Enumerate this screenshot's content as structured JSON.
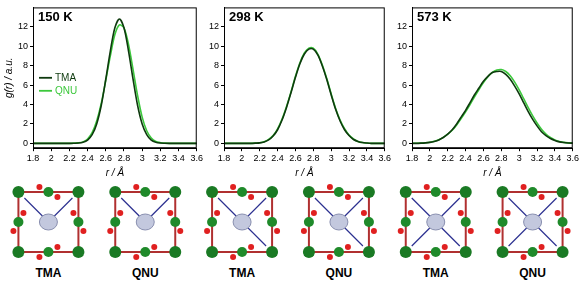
{
  "chart_data": [
    {
      "type": "line",
      "title": "150 K",
      "x_label": "r / Å",
      "y_label": "g(r) / a.u.",
      "x": [
        1.8,
        1.85,
        1.9,
        1.95,
        2.0,
        2.05,
        2.1,
        2.15,
        2.2,
        2.25,
        2.3,
        2.35,
        2.4,
        2.45,
        2.5,
        2.55,
        2.6,
        2.65,
        2.7,
        2.75,
        2.8,
        2.85,
        2.9,
        2.95,
        3.0,
        3.05,
        3.1,
        3.15,
        3.2,
        3.25,
        3.3,
        3.35,
        3.4,
        3.45,
        3.5,
        3.55,
        3.6
      ],
      "series": [
        {
          "name": "TMA",
          "color": "#0e3a0e",
          "values": [
            0,
            0,
            0,
            0,
            0,
            0,
            0,
            0,
            0,
            0.01,
            0.03,
            0.11,
            0.34,
            0.89,
            2.0,
            3.9,
            6.6,
            9.5,
            11.9,
            12.8,
            11.9,
            9.5,
            6.6,
            3.9,
            2.0,
            0.9,
            0.34,
            0.11,
            0.03,
            0.01,
            0,
            0,
            0,
            0,
            0,
            0,
            0
          ]
        },
        {
          "name": "QNU",
          "color": "#3cc83c",
          "values": [
            0,
            0,
            0,
            0,
            0,
            0,
            0,
            0,
            0,
            0.02,
            0.05,
            0.15,
            0.45,
            1.1,
            2.3,
            4.1,
            6.5,
            9.0,
            11.2,
            12.2,
            11.9,
            10.2,
            7.6,
            4.9,
            2.7,
            1.3,
            0.55,
            0.2,
            0.07,
            0.02,
            0,
            0,
            0,
            0,
            0,
            0,
            0
          ]
        }
      ],
      "xlim": [
        1.8,
        3.6
      ],
      "xticks": [
        1.8,
        2,
        2.2,
        2.4,
        2.6,
        2.8,
        3,
        3.2,
        3.4,
        3.6
      ],
      "ylim": [
        -0.5,
        14
      ],
      "yticks": [
        0,
        2,
        4,
        6,
        8,
        10,
        12
      ],
      "grid": false,
      "legend": "left"
    },
    {
      "type": "line",
      "title": "298 K",
      "x_label": "r / Å",
      "x": [
        1.8,
        1.85,
        1.9,
        1.95,
        2.0,
        2.05,
        2.1,
        2.15,
        2.2,
        2.25,
        2.3,
        2.35,
        2.4,
        2.45,
        2.5,
        2.55,
        2.6,
        2.65,
        2.7,
        2.75,
        2.8,
        2.85,
        2.9,
        2.95,
        3.0,
        3.05,
        3.1,
        3.15,
        3.2,
        3.25,
        3.3,
        3.35,
        3.4,
        3.45,
        3.5,
        3.55,
        3.6
      ],
      "series": [
        {
          "name": "TMA",
          "color": "#0e3a0e",
          "values": [
            0,
            0,
            0,
            0,
            0,
            0,
            0,
            0.02,
            0.05,
            0.15,
            0.35,
            0.75,
            1.4,
            2.4,
            3.7,
            5.2,
            6.8,
            8.2,
            9.2,
            9.7,
            9.7,
            9.1,
            8.0,
            6.6,
            5.0,
            3.5,
            2.3,
            1.4,
            0.8,
            0.4,
            0.2,
            0.08,
            0.03,
            0,
            0,
            0,
            0
          ]
        },
        {
          "name": "QNU",
          "color": "#3cc83c",
          "values": [
            0,
            0,
            0,
            0,
            0,
            0,
            0,
            0.02,
            0.06,
            0.17,
            0.4,
            0.8,
            1.5,
            2.5,
            3.8,
            5.3,
            6.9,
            8.3,
            9.3,
            9.8,
            9.8,
            9.2,
            8.1,
            6.7,
            5.1,
            3.6,
            2.4,
            1.5,
            0.85,
            0.45,
            0.2,
            0.08,
            0.03,
            0,
            0,
            0,
            0
          ]
        }
      ],
      "xlim": [
        1.8,
        3.6
      ],
      "xticks": [
        1.8,
        2,
        2.2,
        2.4,
        2.6,
        2.8,
        3,
        3.2,
        3.4,
        3.6
      ],
      "ylim": [
        -0.5,
        14
      ],
      "yticks": [
        0,
        2,
        4,
        6,
        8,
        10,
        12
      ],
      "grid": false
    },
    {
      "type": "line",
      "title": "573 K",
      "x_label": "r / Å",
      "x": [
        1.8,
        1.85,
        1.9,
        1.95,
        2.0,
        2.05,
        2.1,
        2.15,
        2.2,
        2.25,
        2.3,
        2.35,
        2.4,
        2.45,
        2.5,
        2.55,
        2.6,
        2.65,
        2.7,
        2.75,
        2.8,
        2.85,
        2.9,
        2.95,
        3.0,
        3.05,
        3.1,
        3.15,
        3.2,
        3.25,
        3.3,
        3.35,
        3.4,
        3.45,
        3.5,
        3.55,
        3.6
      ],
      "series": [
        {
          "name": "TMA",
          "color": "#0e3a0e",
          "values": [
            0,
            0,
            0.02,
            0.05,
            0.1,
            0.2,
            0.35,
            0.6,
            0.95,
            1.4,
            2.0,
            2.7,
            3.4,
            4.2,
            5.0,
            5.7,
            6.4,
            6.9,
            7.3,
            7.4,
            7.4,
            7.1,
            6.6,
            5.9,
            5.1,
            4.2,
            3.3,
            2.5,
            1.8,
            1.2,
            0.8,
            0.5,
            0.3,
            0.15,
            0.08,
            0.04,
            0.02
          ]
        },
        {
          "name": "QNU",
          "color": "#3cc83c",
          "values": [
            0,
            0.01,
            0.03,
            0.06,
            0.12,
            0.22,
            0.38,
            0.62,
            0.95,
            1.35,
            1.9,
            2.55,
            3.25,
            4.0,
            4.8,
            5.55,
            6.25,
            6.85,
            7.3,
            7.55,
            7.6,
            7.4,
            6.95,
            6.3,
            5.5,
            4.6,
            3.7,
            2.85,
            2.1,
            1.45,
            0.95,
            0.6,
            0.35,
            0.2,
            0.1,
            0.05,
            0.02
          ]
        }
      ],
      "xlim": [
        1.8,
        3.6
      ],
      "xticks": [
        1.8,
        2,
        2.2,
        2.4,
        2.6,
        2.8,
        3,
        3.2,
        3.4,
        3.6
      ],
      "ylim": [
        -0.5,
        14
      ],
      "yticks": [
        0,
        2,
        4,
        6,
        8,
        10,
        12
      ],
      "grid": false
    }
  ],
  "structure_labels": [
    "TMA",
    "QNU",
    "TMA",
    "QNU",
    "TMA",
    "QNU"
  ]
}
